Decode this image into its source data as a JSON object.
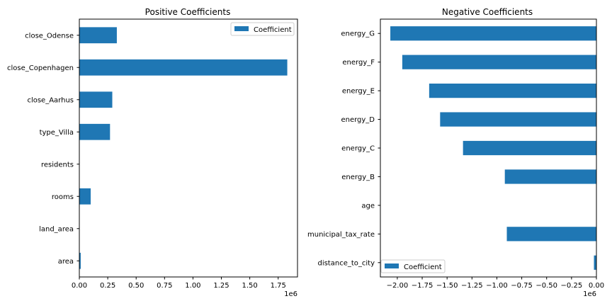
{
  "chart_data": [
    {
      "type": "bar",
      "orientation": "horizontal",
      "title": "Positive Coefficients",
      "categories": [
        "area",
        "land_area",
        "rooms",
        "residents",
        "type_Villa",
        "close_Aarhus",
        "close_Copenhagen",
        "close_Odense"
      ],
      "series": [
        {
          "name": "Coefficient",
          "values": [
            12000,
            400,
            100000,
            300,
            270000,
            290000,
            1830000,
            330000
          ]
        }
      ],
      "xlim": [
        0,
        1920000
      ],
      "xticks": [
        0,
        250000,
        500000,
        750000,
        1000000,
        1250000,
        1500000,
        1750000
      ],
      "xtick_labels": [
        "0.00",
        "0.25",
        "0.50",
        "0.75",
        "1.00",
        "1.25",
        "1.50",
        "1.75"
      ],
      "offset_text": "1e6",
      "xlabel": "",
      "ylabel": "",
      "grid": false,
      "legend": "top-right",
      "color": "#1f77b4"
    },
    {
      "type": "bar",
      "orientation": "horizontal",
      "title": "Negative Coefficients",
      "categories": [
        "distance_to_city",
        "municipal_tax_rate",
        "age",
        "energy_B",
        "energy_C",
        "energy_D",
        "energy_E",
        "energy_F",
        "energy_G"
      ],
      "series": [
        {
          "name": "Coefficient",
          "values": [
            -25000,
            -900000,
            -1000,
            -920000,
            -1340000,
            -1570000,
            -1680000,
            -1950000,
            -2070000
          ]
        }
      ],
      "xlim": [
        -2170000,
        0
      ],
      "xticks": [
        -2000000,
        -1750000,
        -1500000,
        -1250000,
        -1000000,
        -750000,
        -500000,
        -250000,
        0
      ],
      "xtick_labels": [
        "−2.00",
        "−1.75",
        "−1.50",
        "−1.25",
        "−1.00",
        "−0.75",
        "−0.50",
        "−0.25",
        "0.00"
      ],
      "offset_text": "1e6",
      "xlabel": "",
      "ylabel": "",
      "grid": false,
      "legend": "bottom-left",
      "color": "#1f77b4"
    }
  ]
}
